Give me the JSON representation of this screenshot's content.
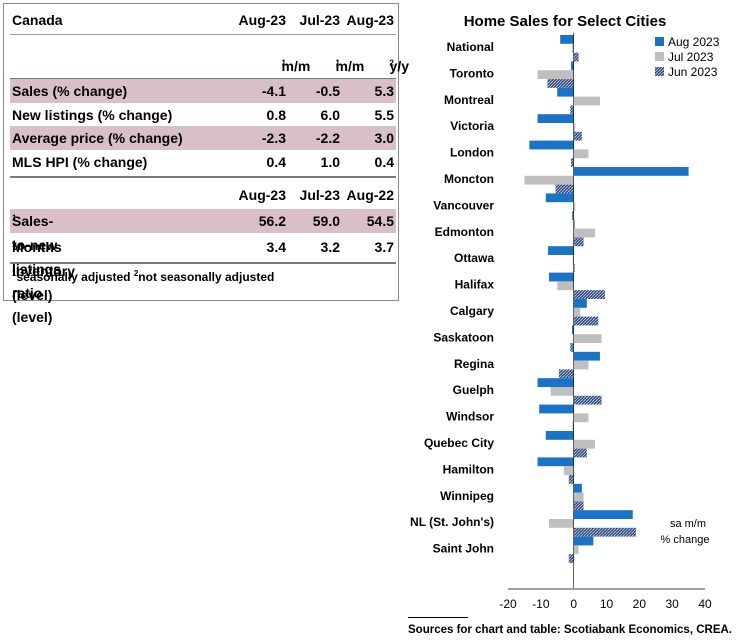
{
  "table": {
    "region": "Canada",
    "header": [
      "Aug-23",
      "Jul-23",
      "Aug-23"
    ],
    "units": [
      "m/m",
      "m/m",
      "y/y"
    ],
    "unit_sups": [
      "1",
      "1",
      "2"
    ],
    "rows": [
      {
        "label": "Sales (% change)",
        "values": [
          "-4.1",
          "-0.5",
          "5.3"
        ],
        "shaded": true
      },
      {
        "label": "New listings (% change)",
        "values": [
          "0.8",
          "6.0",
          "5.5"
        ],
        "shaded": false
      },
      {
        "label": "Average price (% change)",
        "values": [
          "-2.3",
          "-2.2",
          "3.0"
        ],
        "shaded": true
      },
      {
        "label": "MLS HPI (% change)",
        "values": [
          "0.4",
          "1.0",
          "0.4"
        ],
        "shaded": false
      }
    ],
    "header2": [
      "Aug-23",
      "Jul-23",
      "Aug-22"
    ],
    "rows2": [
      {
        "label": "Sales-to-new listings ratio (level)",
        "sup": "1",
        "values": [
          "56.2",
          "59.0",
          "54.5"
        ],
        "shaded": true
      },
      {
        "label": "Months inventory (level)",
        "sup": "1",
        "values": [
          "3.4",
          "3.2",
          "3.7"
        ],
        "shaded": false
      }
    ],
    "footnote": {
      "sup1": "1",
      "text1": "seasonally adjusted",
      "sup2": "2",
      "text2": "not seasonally adjusted"
    }
  },
  "chart_data": {
    "type": "bar",
    "orientation": "horizontal",
    "title": "Home Sales for Select Cities",
    "unit_note": [
      "sa m/m",
      "% change"
    ],
    "categories": [
      "National",
      "Toronto",
      "Montreal",
      "Victoria",
      "London",
      "Moncton",
      "Vancouver",
      "Edmonton",
      "Ottawa",
      "Halifax",
      "Calgary",
      "Saskatoon",
      "Regina",
      "Guelph",
      "Windsor",
      "Quebec City",
      "Hamilton",
      "Winnipeg",
      "NL (St. John's)",
      "Saint John"
    ],
    "series": [
      {
        "name": "Aug 2023",
        "color": "#1a73c6",
        "pattern": "solid",
        "values": [
          -4.1,
          -0.8,
          -5.0,
          -11.0,
          -13.5,
          35.0,
          -8.5,
          0.3,
          -7.8,
          -7.5,
          4.0,
          -0.5,
          8.0,
          -11.0,
          -10.5,
          -8.5,
          -11.0,
          2.5,
          18.0,
          6.0
        ]
      },
      {
        "name": "Jul 2023",
        "color": "#bfbfbf",
        "pattern": "solid",
        "values": [
          -0.5,
          -11.0,
          8.0,
          0.5,
          4.5,
          -15.0,
          0.5,
          6.5,
          -0.3,
          -5.0,
          2.0,
          8.5,
          4.5,
          -7.0,
          4.5,
          6.5,
          -3.0,
          3.0,
          -7.5,
          1.5
        ]
      },
      {
        "name": "Jun 2023",
        "color": "#2e4a7a",
        "pattern": "hatched",
        "values": [
          1.5,
          -8.0,
          -1.0,
          2.5,
          -0.8,
          -5.5,
          -0.5,
          3.0,
          0.3,
          9.5,
          7.5,
          -1.0,
          -4.5,
          8.5,
          -0.3,
          4.0,
          -1.5,
          3.0,
          19.0,
          -1.5
        ]
      }
    ],
    "xlim": [
      -20,
      40
    ],
    "xticks": [
      -20,
      -10,
      0,
      10,
      20,
      30,
      40
    ],
    "legend_position": "top-right",
    "grid": false
  },
  "sources": "Sources for chart and table: Scotiabank Economics, CREA."
}
